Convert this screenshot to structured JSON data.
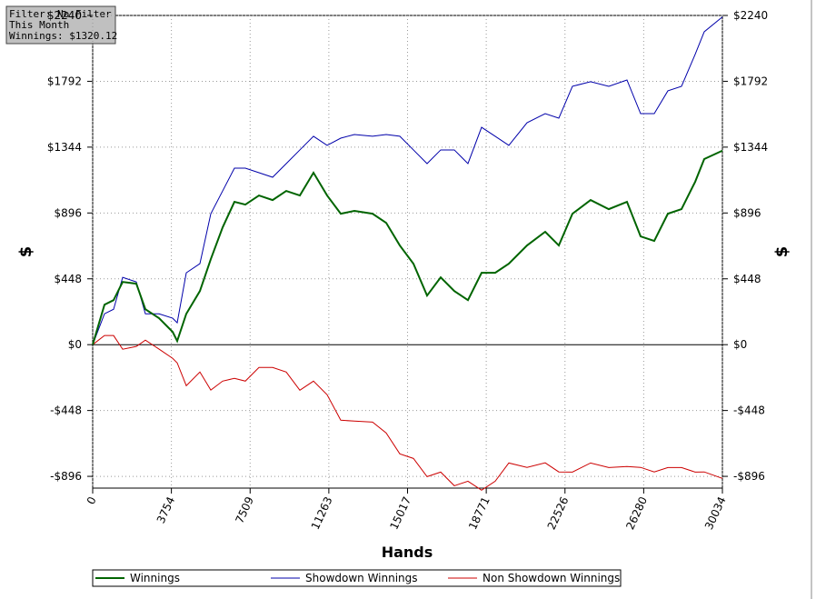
{
  "chart_data": {
    "type": "line",
    "annotations": [
      "Filter: No Filter",
      "This Month",
      "Winnings: $1320.12"
    ],
    "xlabel": "Hands",
    "ylabel": "$",
    "x": [
      0,
      563,
      997,
      1430,
      2080,
      2513,
      3164,
      3814,
      4031,
      4464,
      5114,
      5634,
      6198,
      6761,
      7281,
      7931,
      8581,
      9231,
      9881,
      10531,
      11181,
      11831,
      12481,
      13348,
      13998,
      14648,
      15298,
      15948,
      16598,
      17248,
      17898,
      18548,
      19198,
      19848,
      20715,
      21582,
      22232,
      22882,
      23748,
      24615,
      25482,
      26133,
      26783,
      27433,
      28083,
      28734,
      29167,
      30034
    ],
    "series": [
      {
        "name": "Winnings",
        "color": "#006400",
        "values": [
          0,
          272,
          303,
          427,
          415,
          241,
          180,
          87,
          25,
          210,
          365,
          582,
          798,
          972,
          953,
          1015,
          984,
          1046,
          1015,
          1170,
          1015,
          891,
          910,
          891,
          829,
          675,
          551,
          334,
          458,
          365,
          303,
          489,
          489,
          551,
          675,
          768,
          675,
          891,
          984,
          922,
          972,
          737,
          706,
          891,
          922,
          1108,
          1263,
          1320
        ]
      },
      {
        "name": "Showdown Winnings",
        "color": "#0000aa",
        "values": [
          0,
          210,
          241,
          458,
          427,
          210,
          210,
          180,
          149,
          489,
          551,
          891,
          1046,
          1201,
          1201,
          1170,
          1139,
          1232,
          1325,
          1418,
          1356,
          1405,
          1430,
          1418,
          1430,
          1418,
          1325,
          1232,
          1325,
          1325,
          1232,
          1479,
          1418,
          1356,
          1510,
          1572,
          1541,
          1758,
          1789,
          1758,
          1801,
          1572,
          1572,
          1727,
          1758,
          1975,
          2129,
          2230
        ]
      },
      {
        "name": "Non Showdown Winnings",
        "color": "#cc0000",
        "values": [
          0,
          62,
          62,
          -31,
          -12,
          31,
          -30,
          -93,
          -124,
          -279,
          -186,
          -309,
          -248,
          -229,
          -248,
          -155,
          -155,
          -186,
          -310,
          -248,
          -341,
          -514,
          -520,
          -527,
          -601,
          -743,
          -774,
          -898,
          -867,
          -960,
          -929,
          -990,
          -929,
          -805,
          -835,
          -804,
          -866,
          -867,
          -805,
          -836,
          -829,
          -835,
          -866,
          -836,
          -836,
          -867,
          -866,
          -910
        ]
      }
    ],
    "xlim": [
      0,
      30034
    ],
    "xticks": [
      0,
      3754,
      7509,
      11263,
      15017,
      18771,
      22526,
      26280,
      30034
    ],
    "ylim": [
      -976,
      2240
    ],
    "yticks": [
      {
        "value": -896,
        "label": "-$896"
      },
      {
        "value": -448,
        "label": "-$448"
      },
      {
        "value": 0,
        "label": "$0"
      },
      {
        "value": 448,
        "label": "$448"
      },
      {
        "value": 896,
        "label": "$896"
      },
      {
        "value": 1344,
        "label": "$1344"
      },
      {
        "value": 1792,
        "label": "$1792"
      },
      {
        "value": 2240,
        "label": "$2240"
      }
    ],
    "grid": true,
    "legend": "bottom"
  }
}
